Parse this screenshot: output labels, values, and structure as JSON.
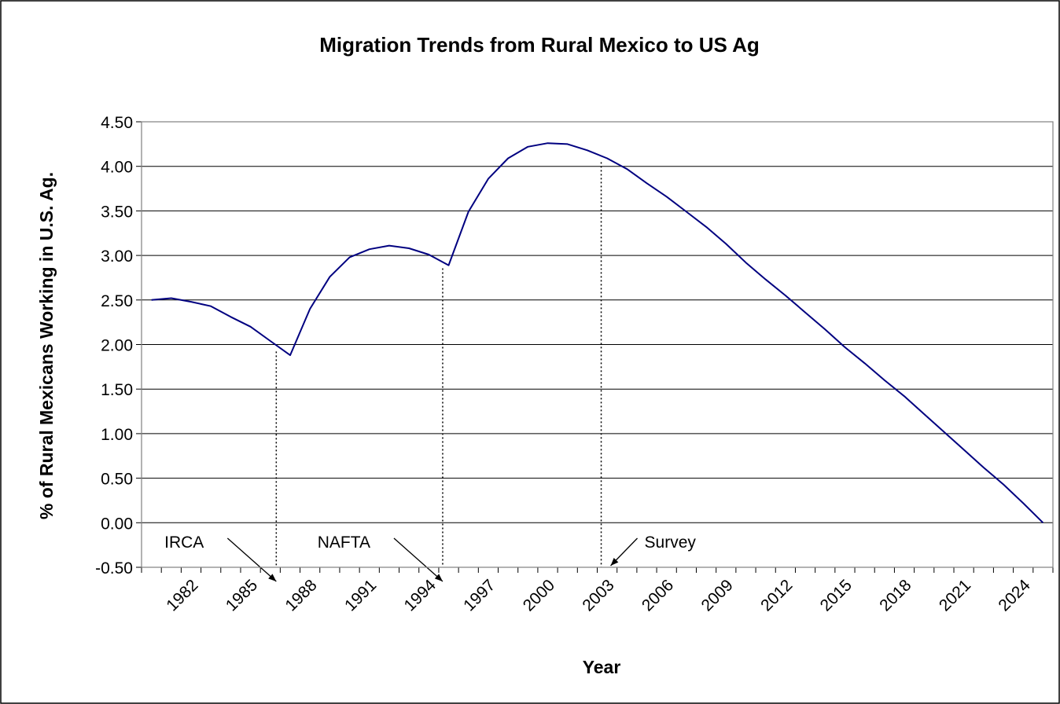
{
  "chart_data": {
    "type": "line",
    "title": "Migration Trends from Rural Mexico to US Ag",
    "xlabel": "Year",
    "ylabel": "% of Rural Mexicans Working in U.S. Ag.",
    "ylim": [
      -0.5,
      4.5
    ],
    "xlim": [
      1979.5,
      2025.5
    ],
    "y_ticks": [
      -0.5,
      0,
      0.5,
      1,
      1.5,
      2,
      2.5,
      3,
      3.5,
      4,
      4.5
    ],
    "y_tick_labels": [
      "-0.50",
      "0.00",
      "0.50",
      "1.00",
      "1.50",
      "2.00",
      "2.50",
      "3.00",
      "3.50",
      "4.00",
      "4.50"
    ],
    "x_tick_labels": [
      "1982",
      "1985",
      "1988",
      "1991",
      "1994",
      "1997",
      "2000",
      "2003",
      "2006",
      "2009",
      "2012",
      "2015",
      "2018",
      "2021",
      "2024"
    ],
    "grid": "horizontal",
    "series": [
      {
        "color": "#000080",
        "x": [
          1980,
          1981,
          1982,
          1983,
          1984,
          1985,
          1986,
          1987,
          1988,
          1989,
          1990,
          1991,
          1992,
          1993,
          1994,
          1995,
          1996,
          1997,
          1998,
          1999,
          2000,
          2001,
          2002,
          2003,
          2004,
          2005,
          2006,
          2007,
          2008,
          2009,
          2010,
          2011,
          2012,
          2013,
          2014,
          2015,
          2016,
          2017,
          2018,
          2019,
          2020,
          2021,
          2022,
          2023,
          2024,
          2025
        ],
        "values": [
          2.5,
          2.52,
          2.48,
          2.43,
          2.31,
          2.2,
          2.04,
          1.88,
          2.4,
          2.76,
          2.98,
          3.07,
          3.11,
          3.08,
          3.01,
          2.89,
          3.49,
          3.86,
          4.09,
          4.22,
          4.26,
          4.25,
          4.18,
          4.09,
          3.97,
          3.81,
          3.66,
          3.49,
          3.32,
          3.13,
          2.92,
          2.73,
          2.55,
          2.36,
          2.17,
          1.97,
          1.79,
          1.6,
          1.42,
          1.22,
          1.02,
          0.82,
          0.62,
          0.43,
          0.22,
          0.0
        ]
      }
    ],
    "annotations": [
      {
        "text": "IRCA",
        "year": 1986.3
      },
      {
        "text": "NAFTA",
        "year": 1994.7
      },
      {
        "text": "Survey",
        "year": 2002.7
      }
    ]
  }
}
